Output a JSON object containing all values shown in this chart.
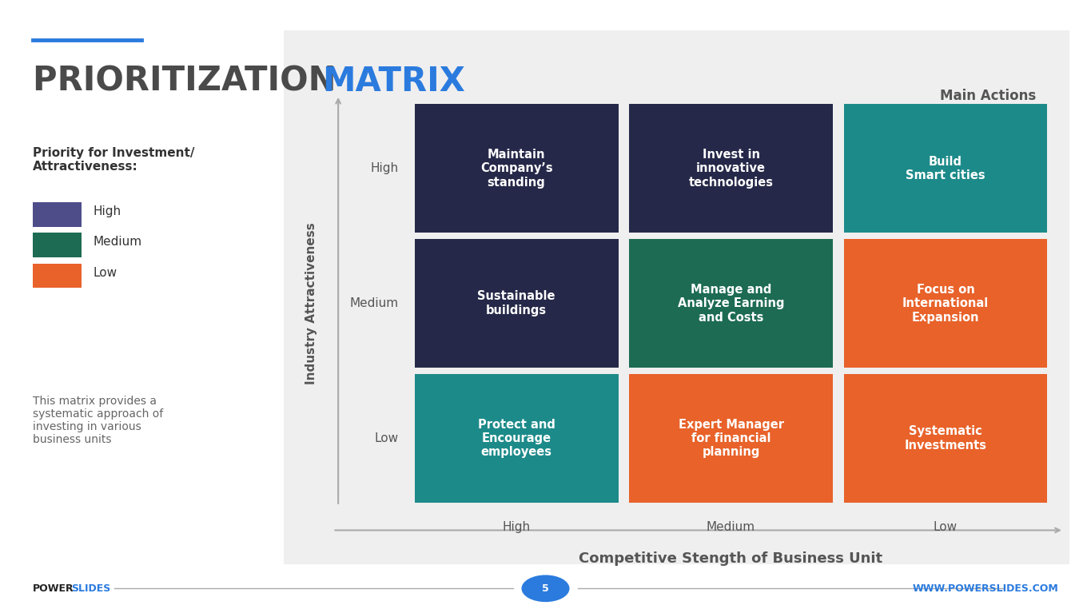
{
  "title_part1": "PRIORITIZATION ",
  "title_part2": "MATRIX",
  "title_color1": "#4a4a4a",
  "title_color2": "#2b7bde",
  "title_fontsize": 30,
  "accent_line_color": "#2b7bde",
  "main_actions_label": "Main Actions",
  "right_panel_bg": "#efefef",
  "legend_title": "Priority for Investment/\nAttractiveness:",
  "legend_items": [
    {
      "label": "High",
      "color": "#4e4d8a"
    },
    {
      "label": "Medium",
      "color": "#1d6b52"
    },
    {
      "label": "Low",
      "color": "#e8622a"
    }
  ],
  "description_text": "This matrix provides a\nsystematic approach of\ninvesting in various\nbusiness units",
  "footer_left1": "POWER",
  "footer_left2": "SLIDES",
  "footer_right": "WWW.POWERSLIDES.COM",
  "footer_page": "5",
  "footer_color1": "#222222",
  "footer_color2": "#2b7bde",
  "y_axis_label": "Industry Attractiveness",
  "x_axis_label": "Competitive Stength of Business Unit",
  "row_labels": [
    "High",
    "Medium",
    "Low"
  ],
  "col_labels": [
    "High",
    "Medium",
    "Low"
  ],
  "cells": [
    [
      {
        "text": "Maintain\nCompany’s\nstanding",
        "color": "#252848"
      },
      {
        "text": "Invest in\ninnovative\ntechnologies",
        "color": "#252848"
      },
      {
        "text": "Build\nSmart cities",
        "color": "#1d8a8a"
      }
    ],
    [
      {
        "text": "Sustainable\nbuildings",
        "color": "#252848"
      },
      {
        "text": "Manage and\nAnalyze Earning\nand Costs",
        "color": "#1d6b52"
      },
      {
        "text": "Focus on\nInternational\nExpansion",
        "color": "#e8622a"
      }
    ],
    [
      {
        "text": "Protect and\nEncourage\nemployees",
        "color": "#1d8a8a"
      },
      {
        "text": "Expert Manager\nfor financial\nplanning",
        "color": "#e8622a"
      },
      {
        "text": "Systematic\nInvestments",
        "color": "#e8622a"
      }
    ]
  ]
}
